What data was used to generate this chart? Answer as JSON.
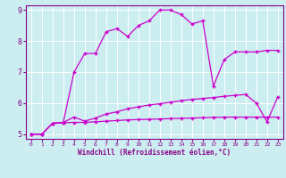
{
  "background_color": "#cceef0",
  "grid_color": "#ffffff",
  "line_color": "#cc00cc",
  "marker": "+",
  "xlabel": "Windchill (Refroidissement éolien,°C)",
  "xlim": [
    -0.5,
    23.5
  ],
  "ylim": [
    4.85,
    9.15
  ],
  "xticks": [
    0,
    1,
    2,
    3,
    4,
    5,
    6,
    7,
    8,
    9,
    10,
    11,
    12,
    13,
    14,
    15,
    16,
    17,
    18,
    19,
    20,
    21,
    22,
    23
  ],
  "yticks": [
    5,
    6,
    7,
    8,
    9
  ],
  "curve1_x": [
    0,
    1,
    2,
    3,
    4,
    5,
    6,
    7,
    8,
    9,
    10,
    11,
    12,
    13,
    14,
    15,
    16,
    17,
    18,
    19,
    20,
    21,
    22,
    23
  ],
  "curve1_y": [
    5.0,
    5.0,
    5.35,
    5.37,
    5.38,
    5.38,
    5.4,
    5.42,
    5.44,
    5.46,
    5.47,
    5.48,
    5.49,
    5.5,
    5.51,
    5.52,
    5.53,
    5.54,
    5.55,
    5.55,
    5.55,
    5.55,
    5.55,
    5.55
  ],
  "curve2_x": [
    0,
    1,
    2,
    3,
    4,
    5,
    6,
    7,
    8,
    9,
    10,
    11,
    12,
    13,
    14,
    15,
    16,
    17,
    18,
    19,
    20,
    21,
    22,
    23
  ],
  "curve2_y": [
    5.0,
    5.0,
    5.35,
    5.38,
    5.55,
    5.42,
    5.52,
    5.65,
    5.72,
    5.82,
    5.88,
    5.94,
    5.98,
    6.03,
    6.08,
    6.12,
    6.15,
    6.18,
    6.22,
    6.25,
    6.28,
    6.0,
    5.4,
    6.2
  ],
  "curve3_x": [
    0,
    1,
    2,
    3,
    4,
    5,
    6,
    7,
    8,
    9,
    10,
    11,
    12,
    13,
    14,
    15,
    16,
    17,
    18,
    19,
    20,
    21,
    22,
    23
  ],
  "curve3_y": [
    5.0,
    5.0,
    5.35,
    5.38,
    7.0,
    7.6,
    7.6,
    8.3,
    8.4,
    8.15,
    8.5,
    8.65,
    9.0,
    9.0,
    8.85,
    8.55,
    8.65,
    6.55,
    7.4,
    7.65,
    7.65,
    7.65,
    7.7,
    7.7
  ]
}
